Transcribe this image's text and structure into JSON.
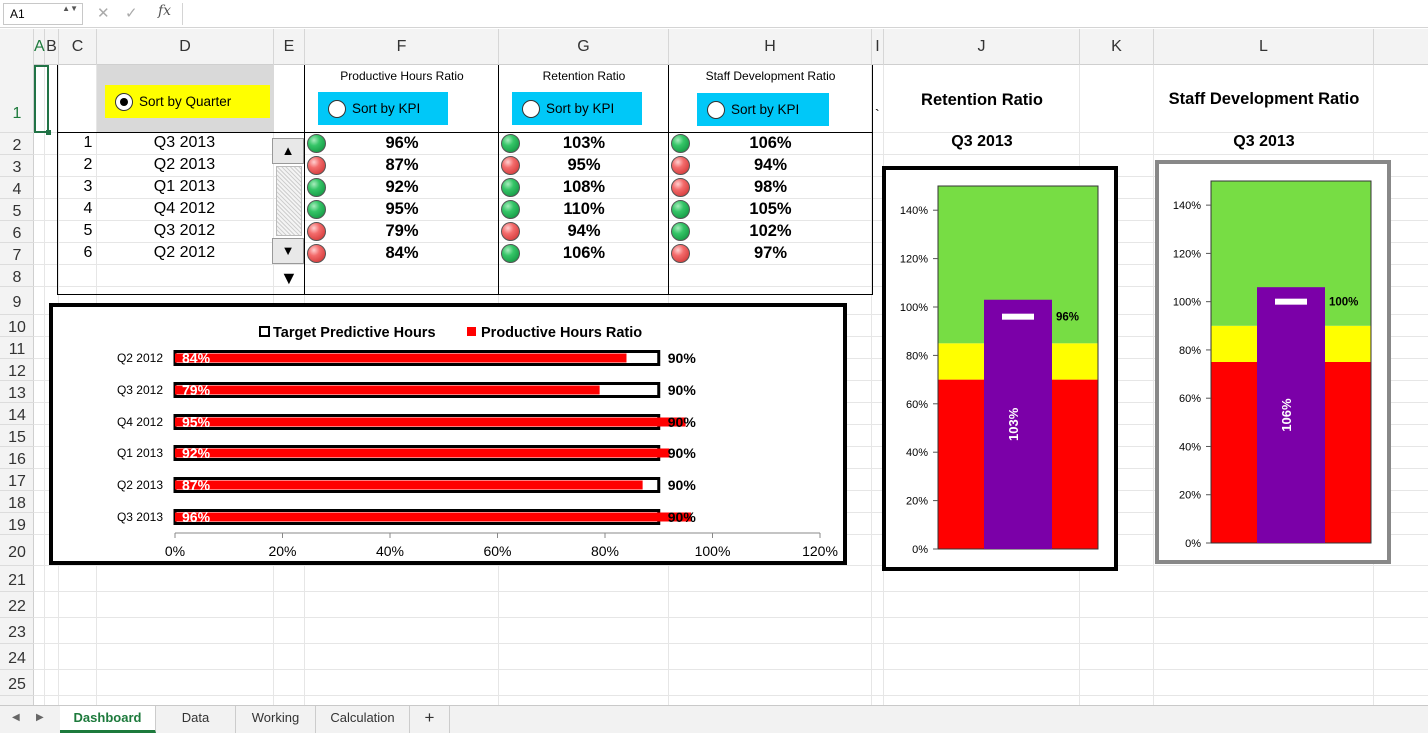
{
  "formula_bar": {
    "name_box": "A1",
    "fx_label": "fx",
    "name_box_arrow": "▲▼",
    "cancel_glyph": "✕",
    "enter_glyph": "✓"
  },
  "columns": [
    {
      "label": "A"
    },
    {
      "label": "B"
    },
    {
      "label": "C"
    },
    {
      "label": "D"
    },
    {
      "label": "E"
    },
    {
      "label": "F"
    },
    {
      "label": "G"
    },
    {
      "label": "H"
    },
    {
      "label": "I"
    },
    {
      "label": "J"
    },
    {
      "label": "K"
    },
    {
      "label": "L"
    }
  ],
  "rows": [
    "1",
    "2",
    "3",
    "4",
    "5",
    "6",
    "7",
    "8",
    "9",
    "10",
    "11",
    "12",
    "13",
    "14",
    "15",
    "16",
    "17",
    "18",
    "19",
    "20",
    "21",
    "22",
    "23",
    "24",
    "25"
  ],
  "table": {
    "sort_quarter_label": "Sort by Quarter",
    "col_f_header": "Productive Hours Ratio",
    "col_g_header": "Retention Ratio",
    "col_h_header": "Staff Development Ratio",
    "sort_kpi_label": "Sort by KPI",
    "scroll_up": "▲",
    "scroll_down": "▼",
    "scroll_arrow": "▼",
    "stray_mark": "`",
    "rows": [
      {
        "rank": "1",
        "quarter": "Q3 2013",
        "f": "96%",
        "f_status": "green",
        "g": "103%",
        "g_status": "green",
        "h": "106%",
        "h_status": "green"
      },
      {
        "rank": "2",
        "quarter": "Q2 2013",
        "f": "87%",
        "f_status": "red",
        "g": "95%",
        "g_status": "red",
        "h": "94%",
        "h_status": "red"
      },
      {
        "rank": "3",
        "quarter": "Q1 2013",
        "f": "92%",
        "f_status": "green",
        "g": "108%",
        "g_status": "green",
        "h": "98%",
        "h_status": "red"
      },
      {
        "rank": "4",
        "quarter": "Q4 2012",
        "f": "95%",
        "f_status": "green",
        "g": "110%",
        "g_status": "green",
        "h": "105%",
        "h_status": "green"
      },
      {
        "rank": "5",
        "quarter": "Q3 2012",
        "f": "79%",
        "f_status": "red",
        "g": "94%",
        "g_status": "red",
        "h": "102%",
        "h_status": "green"
      },
      {
        "rank": "6",
        "quarter": "Q2 2012",
        "f": "84%",
        "f_status": "red",
        "g": "106%",
        "g_status": "green",
        "h": "97%",
        "h_status": "red"
      }
    ]
  },
  "chart_data": [
    {
      "type": "bar",
      "orientation": "horizontal",
      "legend": [
        "Target Predictive Hours",
        "Productive Hours Ratio"
      ],
      "legend_position": "top",
      "categories": [
        "Q2 2012",
        "Q3 2012",
        "Q4 2012",
        "Q1 2013",
        "Q2 2013",
        "Q3 2013"
      ],
      "series": [
        {
          "name": "Productive Hours Ratio",
          "values": [
            84,
            79,
            95,
            92,
            87,
            96
          ],
          "labels": [
            "84%",
            "79%",
            "95%",
            "92%",
            "87%",
            "96%"
          ],
          "color": "#ff0000"
        },
        {
          "name": "Target Predictive Hours",
          "values": [
            90,
            90,
            90,
            90,
            90,
            90
          ],
          "labels": [
            "90%",
            "90%",
            "90%",
            "90%",
            "90%",
            "90%"
          ],
          "color": "#ffffff"
        }
      ],
      "xlim": [
        0,
        120
      ],
      "xticks": [
        "0%",
        "20%",
        "40%",
        "60%",
        "80%",
        "100%",
        "120%"
      ]
    },
    {
      "type": "bar",
      "title": "Retention Ratio",
      "subtitle": "Q3 2013",
      "ylim": [
        0,
        150
      ],
      "yticks": [
        "0%",
        "20%",
        "40%",
        "60%",
        "80%",
        "100%",
        "120%",
        "140%"
      ],
      "bands": [
        {
          "from": 0,
          "to": 70,
          "color": "#ff0000"
        },
        {
          "from": 70,
          "to": 85,
          "color": "#ffff00"
        },
        {
          "from": 85,
          "to": 150,
          "color": "#77dd44"
        }
      ],
      "value": 103,
      "value_label": "103%",
      "target": 96,
      "target_label": "96%",
      "bar_color": "#7b00a8"
    },
    {
      "type": "bar",
      "title": "Staff Development Ratio",
      "subtitle": "Q3 2013",
      "ylim": [
        0,
        150
      ],
      "yticks": [
        "0%",
        "20%",
        "40%",
        "60%",
        "80%",
        "100%",
        "120%",
        "140%"
      ],
      "bands": [
        {
          "from": 0,
          "to": 75,
          "color": "#ff0000"
        },
        {
          "from": 75,
          "to": 90,
          "color": "#ffff00"
        },
        {
          "from": 90,
          "to": 150,
          "color": "#77dd44"
        }
      ],
      "value": 106,
      "value_label": "106%",
      "target": 100,
      "target_label": "100%",
      "bar_color": "#7b00a8"
    }
  ],
  "sheet_tabs": [
    {
      "label": "Dashboard",
      "active": true
    },
    {
      "label": "Data"
    },
    {
      "label": "Working"
    },
    {
      "label": "Calculation"
    },
    {
      "label": "+"
    }
  ],
  "nav": {
    "prev": "◀",
    "next": "▶"
  }
}
